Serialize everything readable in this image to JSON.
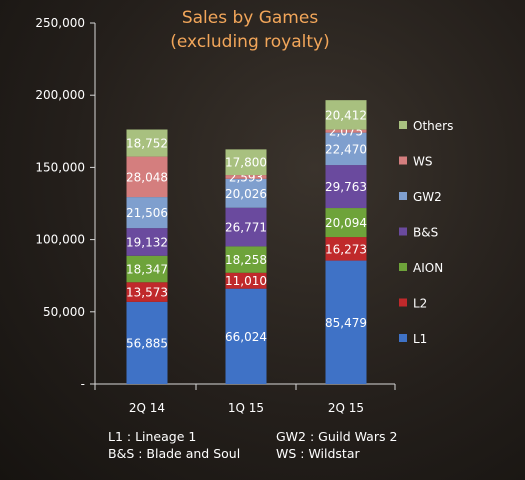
{
  "chart_data": {
    "type": "bar",
    "stacked": true,
    "title": [
      "Sales by Games",
      "(excluding royalty)"
    ],
    "categories": [
      "2Q 14",
      "1Q 15",
      "2Q 15"
    ],
    "ylim": [
      0,
      250000
    ],
    "yticks": [
      0,
      50000,
      100000,
      150000,
      200000,
      250000
    ],
    "ytick_labels": [
      "-",
      "50,000",
      "100,000",
      "150,000",
      "200,000",
      "250,000"
    ],
    "series": [
      {
        "name": "L1",
        "color": "#3f72c6",
        "values": [
          56885,
          66024,
          85479
        ],
        "labels": [
          "56,885",
          "66,024",
          "85,479"
        ]
      },
      {
        "name": "L2",
        "color": "#c0292b",
        "values": [
          13573,
          11010,
          16273
        ],
        "labels": [
          "13,573",
          "11,010",
          "16,273"
        ]
      },
      {
        "name": "AION",
        "color": "#6ea33a",
        "values": [
          18347,
          18258,
          20094
        ],
        "labels": [
          "18,347",
          "18,258",
          "20,094"
        ]
      },
      {
        "name": "B&S",
        "color": "#6a4a9e",
        "values": [
          19132,
          26771,
          29763
        ],
        "labels": [
          "19,132",
          "26,771",
          "29,763"
        ]
      },
      {
        "name": "GW2",
        "color": "#7f9fce",
        "values": [
          21506,
          20026,
          22470
        ],
        "labels": [
          "21,506",
          "20,026",
          "22,470"
        ]
      },
      {
        "name": "WS",
        "color": "#d47e7e",
        "values": [
          28048,
          2593,
          2075
        ],
        "labels": [
          "28,048",
          "2,593",
          "2,075"
        ]
      },
      {
        "name": "Others",
        "color": "#a8c07f",
        "values": [
          18752,
          17800,
          20412
        ],
        "labels": [
          "18,752",
          "17,800",
          "20,412"
        ]
      }
    ],
    "legend_order": [
      "Others",
      "WS",
      "GW2",
      "B&S",
      "AION",
      "L2",
      "L1"
    ],
    "legend_placement": "right",
    "grid": false
  },
  "notes": {
    "l1": "L1 : Lineage 1",
    "bs": "B&S : Blade and Soul",
    "gw2": "GW2 : Guild Wars 2",
    "ws": "WS : Wildstar"
  }
}
